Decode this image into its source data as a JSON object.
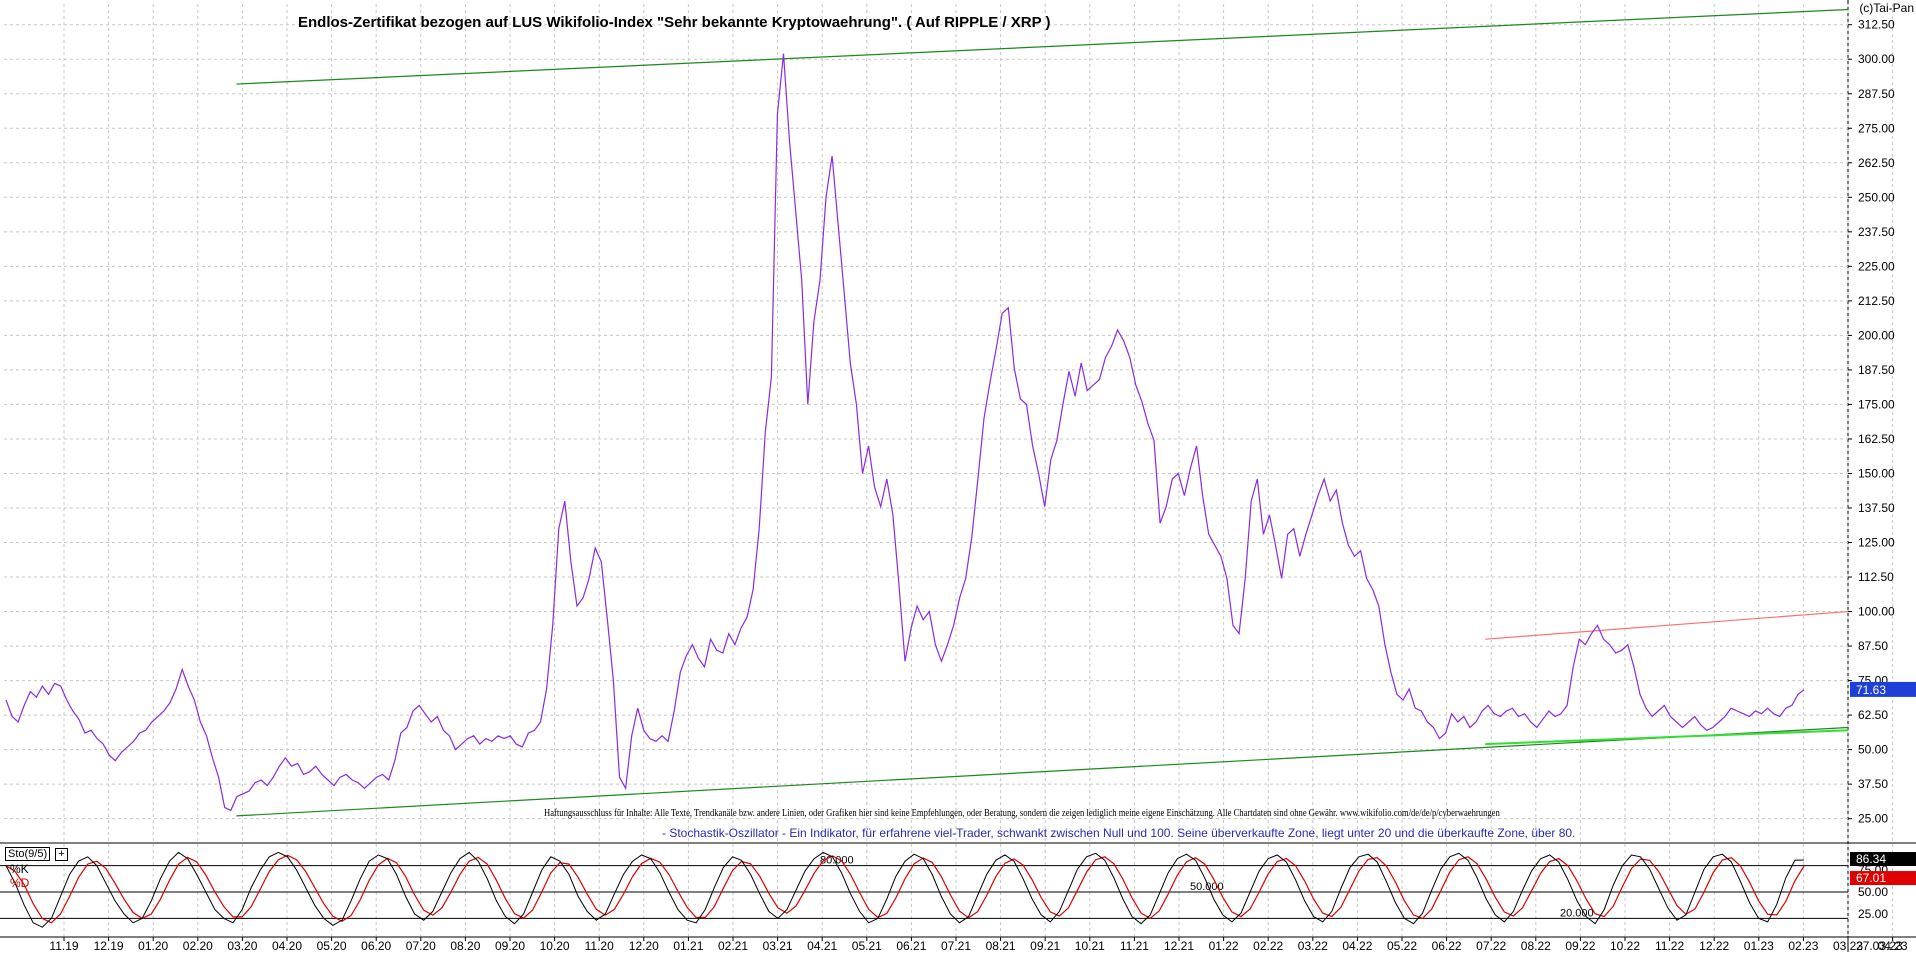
{
  "header": {
    "title": "Endlos-Zertifikat bezogen auf LUS Wikifolio-Index \"Sehr bekannte Kryptowaehrung\". ( Auf RIPPLE / XRP )",
    "copyright": "(c)Tai-Pan"
  },
  "disclaimer": "Haftungsausschluss für Inhalte: Alle Texte, Trendkanäle bzw. andere Linien, oder Grafiken hier sind keine Empfehlungen, oder Beratung, sondern die zeigen lediglich meine eigene Einschätzung. Alle Chartdaten sind ohne Gewähr.  www.wikifolio.com/de/de/p/cyberwaehrungen",
  "oscillator": {
    "description": "- Stochastik-Oszillator - Ein Indikator, für erfahrene viel-Trader, schwankt zwischen Null und 100. Seine überverkaufte Zone, liegt unter 20 und die überkaufte Zone, über 80.",
    "tag": "Sto(9/5)",
    "plus": "+",
    "k_label": "%K",
    "d_label": "%D",
    "k_value": "86.34",
    "d_value": "67.01",
    "level_labels": [
      "80.000",
      "50.000",
      "20.000"
    ],
    "tick_labels": [
      "75.00",
      "50.00",
      "25.00"
    ]
  },
  "colors": {
    "price": "#8a2be2",
    "trend_green": "#1a8a1a",
    "trend_light_green": "#33dd33",
    "trend_red": "#ff6f6f",
    "grid": "#c8c8c8",
    "last_price_box": "#1e3fd8",
    "k_line": "#000000",
    "d_line": "#dd0000"
  },
  "chart_data": {
    "type": "line",
    "title": "Endlos-Zertifikat bezogen auf LUS Wikifolio-Index \"Sehr bekannte Kryptowaehrung\". ( Auf RIPPLE / XRP )",
    "ylim": [
      18,
      320
    ],
    "y_ticks": [
      "25.00",
      "37.50",
      "50.00",
      "62.50",
      "75.00",
      "87.50",
      "100.00",
      "112.50",
      "125.00",
      "137.50",
      "150.00",
      "162.50",
      "175.00",
      "187.50",
      "200.00",
      "212.50",
      "225.00",
      "237.50",
      "250.00",
      "262.50",
      "275.00",
      "287.50",
      "300.00",
      "312.50"
    ],
    "x_labels": [
      "11.19",
      "12.19",
      "01.20",
      "02.20",
      "03.20",
      "04.20",
      "05.20",
      "06.20",
      "07.20",
      "08.20",
      "09.20",
      "10.20",
      "11.20",
      "12.20",
      "01.21",
      "02.21",
      "03.21",
      "04.21",
      "05.21",
      "06.21",
      "07.21",
      "08.21",
      "09.21",
      "10.21",
      "11.21",
      "12.21",
      "01.22",
      "02.22",
      "03.22",
      "04.22",
      "05.22",
      "06.22",
      "07.22",
      "08.22",
      "09.22",
      "10.22",
      "11.22",
      "12.22",
      "01.23",
      "02.23",
      "03.23",
      "04.23"
    ],
    "last_date_label": "27.03.23",
    "last_price": "71.63",
    "series": [
      {
        "values": [
          68,
          62,
          60,
          66,
          71,
          69,
          73,
          70,
          74,
          73,
          68,
          64,
          61,
          56,
          57,
          54,
          52,
          48,
          46,
          49,
          51,
          53,
          56,
          57,
          60,
          62,
          64,
          67,
          72,
          79,
          73,
          68,
          60,
          55,
          47,
          40,
          29,
          28,
          33,
          34,
          35,
          38,
          39,
          37,
          40,
          44,
          47,
          44,
          45,
          41,
          42,
          44,
          41,
          39,
          37,
          40,
          41,
          39,
          38,
          36,
          38,
          40,
          41,
          39,
          46,
          56,
          58,
          64,
          66,
          63,
          60,
          62,
          57,
          55,
          50,
          52,
          54,
          55,
          52,
          54,
          53,
          55,
          54,
          55,
          52,
          51,
          56,
          57,
          60,
          72,
          95,
          130,
          140,
          118,
          102,
          105,
          112,
          123,
          118,
          97,
          75,
          40,
          36,
          55,
          65,
          57,
          54,
          53,
          55,
          53,
          64,
          78,
          84,
          88,
          83,
          80,
          90,
          86,
          85,
          92,
          88,
          94,
          98,
          108,
          130,
          165,
          185,
          280,
          302,
          270,
          245,
          220,
          175,
          205,
          220,
          250,
          265,
          240,
          215,
          190,
          175,
          150,
          160,
          145,
          138,
          148,
          135,
          110,
          82,
          94,
          102,
          97,
          100,
          88,
          82,
          88,
          95,
          105,
          112,
          127,
          148,
          170,
          183,
          195,
          208,
          210,
          188,
          177,
          175,
          160,
          150,
          138,
          155,
          162,
          175,
          187,
          178,
          190,
          180,
          182,
          184,
          192,
          196,
          202,
          198,
          192,
          182,
          176,
          168,
          162,
          132,
          138,
          148,
          150,
          142,
          152,
          160,
          142,
          128,
          124,
          120,
          112,
          95,
          92,
          112,
          140,
          148,
          128,
          135,
          124,
          112,
          128,
          130,
          120,
          128,
          135,
          142,
          148,
          140,
          144,
          132,
          124,
          120,
          122,
          112,
          108,
          102,
          88,
          78,
          70,
          68,
          72,
          65,
          64,
          60,
          58,
          54,
          56,
          63,
          60,
          62,
          58,
          60,
          64,
          66,
          63,
          62,
          64,
          65,
          62,
          63,
          60,
          58,
          61,
          64,
          62,
          63,
          66,
          80,
          90,
          88,
          92,
          95,
          90,
          88,
          85,
          86,
          88,
          80,
          70,
          65,
          62,
          64,
          66,
          62,
          60,
          58,
          60,
          62,
          59,
          57,
          58,
          60,
          62,
          65,
          64,
          63,
          62,
          64,
          63,
          65,
          63,
          62,
          65,
          66,
          70,
          71.63
        ]
      }
    ],
    "trend_lines": [
      {
        "from": [
          "03.20",
          291
        ],
        "to": [
          "27.03.23",
          318
        ]
      },
      {
        "from": [
          "03.20",
          26
        ],
        "to": [
          "27.03.23",
          58
        ]
      },
      {
        "from": [
          "07.22",
          52
        ],
        "to": [
          "27.03.23",
          57
        ]
      },
      {
        "from": [
          "07.22",
          90
        ],
        "to": [
          "27.03.23",
          100
        ]
      }
    ]
  },
  "oscillator_data": {
    "type": "line",
    "ylim": [
      0,
      100
    ],
    "levels": [
      80,
      50,
      20
    ],
    "k_values": [
      80,
      60,
      35,
      15,
      10,
      20,
      45,
      70,
      85,
      90,
      80,
      60,
      40,
      25,
      15,
      20,
      40,
      65,
      85,
      95,
      88,
      70,
      50,
      30,
      20,
      15,
      30,
      55,
      75,
      90,
      95,
      90,
      75,
      55,
      35,
      20,
      12,
      18,
      40,
      65,
      85,
      92,
      88,
      70,
      45,
      25,
      18,
      28,
      50,
      72,
      88,
      95,
      85,
      65,
      40,
      22,
      14,
      25,
      50,
      75,
      90,
      85,
      70,
      45,
      28,
      18,
      25,
      48,
      70,
      85,
      92,
      88,
      72,
      50,
      30,
      18,
      15,
      30,
      55,
      78,
      90,
      86,
      70,
      48,
      28,
      20,
      30,
      52,
      74,
      88,
      95,
      90,
      72,
      48,
      28,
      15,
      20,
      42,
      68,
      85,
      93,
      88,
      70,
      45,
      25,
      15,
      22,
      46,
      70,
      86,
      92,
      85,
      65,
      42,
      24,
      16,
      28,
      52,
      76,
      90,
      94,
      86,
      66,
      42,
      22,
      14,
      24,
      48,
      72,
      88,
      93,
      86,
      66,
      42,
      24,
      16,
      26,
      50,
      74,
      88,
      92,
      84,
      64,
      40,
      22,
      16,
      28,
      54,
      78,
      90,
      93,
      84,
      62,
      38,
      20,
      14,
      26,
      52,
      76,
      90,
      94,
      86,
      66,
      42,
      24,
      16,
      28,
      52,
      74,
      88,
      92,
      84,
      64,
      40,
      22,
      14,
      30,
      58,
      80,
      92,
      90,
      76,
      54,
      32,
      18,
      24,
      50,
      76,
      90,
      93,
      84,
      62,
      38,
      20,
      16,
      36,
      66,
      86,
      86.34
    ]
  }
}
